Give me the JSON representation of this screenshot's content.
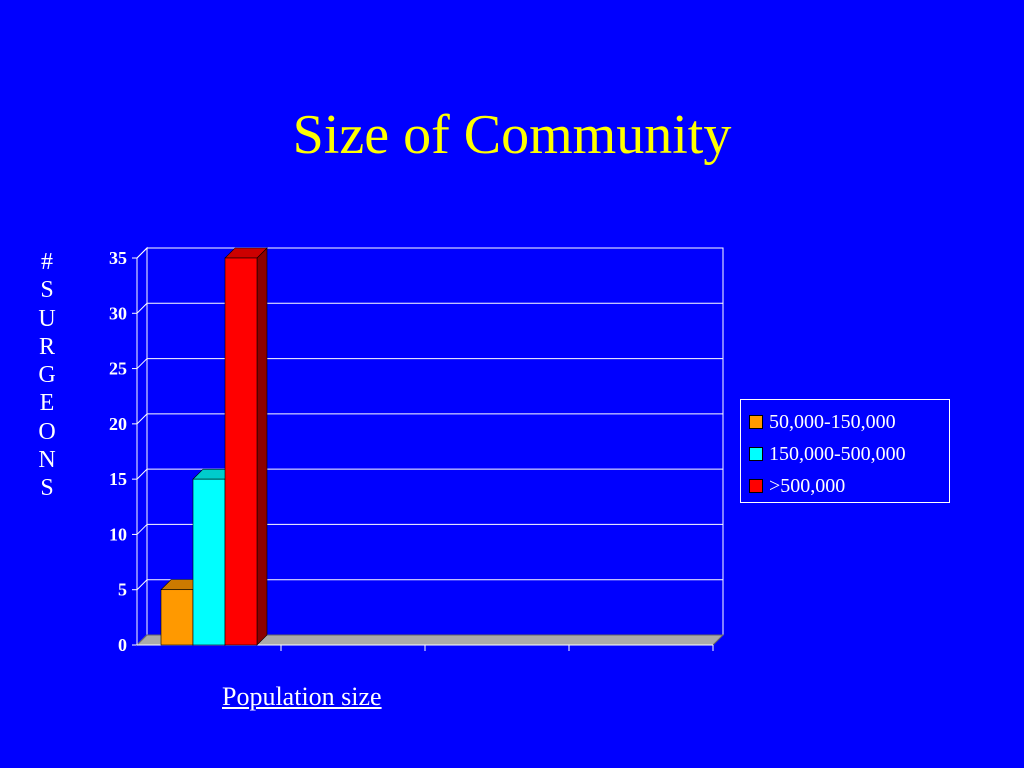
{
  "slide": {
    "title": "Size of Community"
  },
  "chart_data": {
    "type": "bar",
    "title": "Size of Community",
    "ylabel": "# SURGEONS",
    "xlabel": "Population size",
    "categories": [
      ""
    ],
    "series": [
      {
        "name": "50,000-150,000",
        "values": [
          5
        ],
        "color": "#ff9900"
      },
      {
        "name": "150,000-500,000",
        "values": [
          15
        ],
        "color": "#00ffff"
      },
      {
        "name": ">500,000",
        "values": [
          35
        ],
        "color": "#ff0000"
      }
    ],
    "yticks": [
      "0",
      "5",
      "10",
      "15",
      "20",
      "25",
      "30",
      "35"
    ],
    "ylim": [
      0,
      35
    ],
    "grid": true,
    "legend": "right",
    "style": "3d"
  }
}
